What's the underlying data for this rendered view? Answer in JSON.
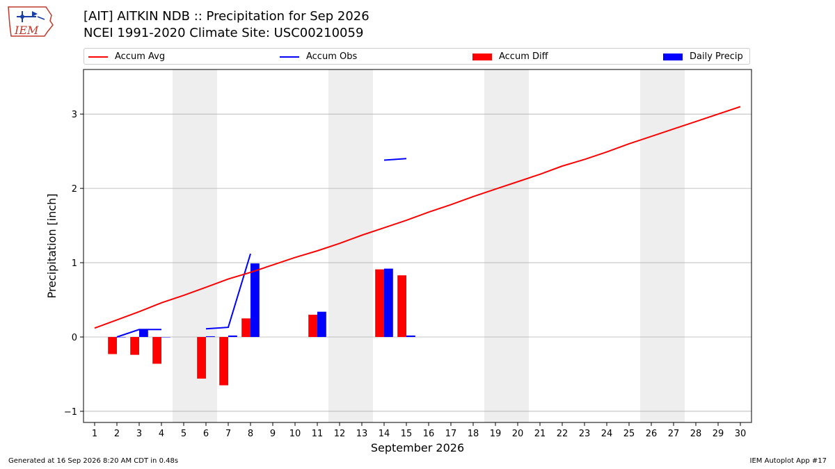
{
  "header": {
    "title_line1": "[AIT] AITKIN NDB :: Precipitation for Sep 2026",
    "title_line2": "NCEI 1991-2020 Climate Site: USC00210059",
    "logo_text": "IEM"
  },
  "footer": {
    "generated": "Generated at 16 Sep 2026 8:20 AM CDT in 0.48s",
    "app": "IEM Autoplot App #17"
  },
  "colors": {
    "accum_avg": "#ff0000",
    "accum_obs": "#0000ff",
    "accum_diff": "#ff0000",
    "daily_precip": "#0000ff",
    "weekend_shade": "#eeeeee",
    "grid": "#b0b0b0"
  },
  "legend": {
    "accum_avg": "Accum Avg",
    "accum_obs": "Accum Obs",
    "accum_diff": "Accum Diff",
    "daily_precip": "Daily Precip"
  },
  "chart_data": {
    "type": "bar",
    "xlabel": "September 2026",
    "ylabel": "Precipitation [inch]",
    "xlim": [
      0.5,
      30.5
    ],
    "ylim": [
      -1.15,
      3.6
    ],
    "yticks": [
      -1,
      0,
      1,
      2,
      3
    ],
    "grid": "horizontal",
    "legend_position": "top",
    "days": [
      1,
      2,
      3,
      4,
      5,
      6,
      7,
      8,
      9,
      10,
      11,
      12,
      13,
      14,
      15,
      16,
      17,
      18,
      19,
      20,
      21,
      22,
      23,
      24,
      25,
      26,
      27,
      28,
      29,
      30
    ],
    "weekend_shaded_days": [
      [
        5,
        6
      ],
      [
        12,
        13
      ],
      [
        19,
        20
      ],
      [
        26,
        27
      ]
    ],
    "series": [
      {
        "name": "Accum Avg",
        "kind": "line",
        "values": [
          0.12,
          0.23,
          0.34,
          0.46,
          0.56,
          0.67,
          0.78,
          0.87,
          0.97,
          1.07,
          1.16,
          1.26,
          1.37,
          1.47,
          1.57,
          1.68,
          1.78,
          1.89,
          1.99,
          2.09,
          2.19,
          2.3,
          2.39,
          2.49,
          2.6,
          2.7,
          2.8,
          2.9,
          3.0,
          3.1
        ]
      },
      {
        "name": "Accum Obs",
        "kind": "line",
        "values": [
          null,
          0.0,
          0.1,
          0.1,
          null,
          0.11,
          0.13,
          1.12,
          null,
          null,
          null,
          null,
          null,
          2.38,
          2.4,
          null,
          null,
          null,
          null,
          null,
          null,
          null,
          null,
          null,
          null,
          null,
          null,
          null,
          null,
          null
        ]
      },
      {
        "name": "Accum Diff",
        "kind": "bar",
        "values": [
          null,
          -0.23,
          -0.24,
          -0.36,
          null,
          -0.56,
          -0.65,
          0.25,
          null,
          null,
          0.3,
          null,
          null,
          0.91,
          0.83,
          null,
          null,
          null,
          null,
          null,
          null,
          null,
          null,
          null,
          null,
          null,
          null,
          null,
          null,
          null
        ]
      },
      {
        "name": "Daily Precip",
        "kind": "bar",
        "values": [
          null,
          0.0,
          0.1,
          0.0,
          null,
          0.01,
          0.02,
          0.99,
          null,
          null,
          0.34,
          null,
          null,
          0.92,
          0.02,
          null,
          null,
          null,
          null,
          null,
          null,
          null,
          null,
          null,
          null,
          null,
          null,
          null,
          null,
          null
        ]
      }
    ]
  }
}
